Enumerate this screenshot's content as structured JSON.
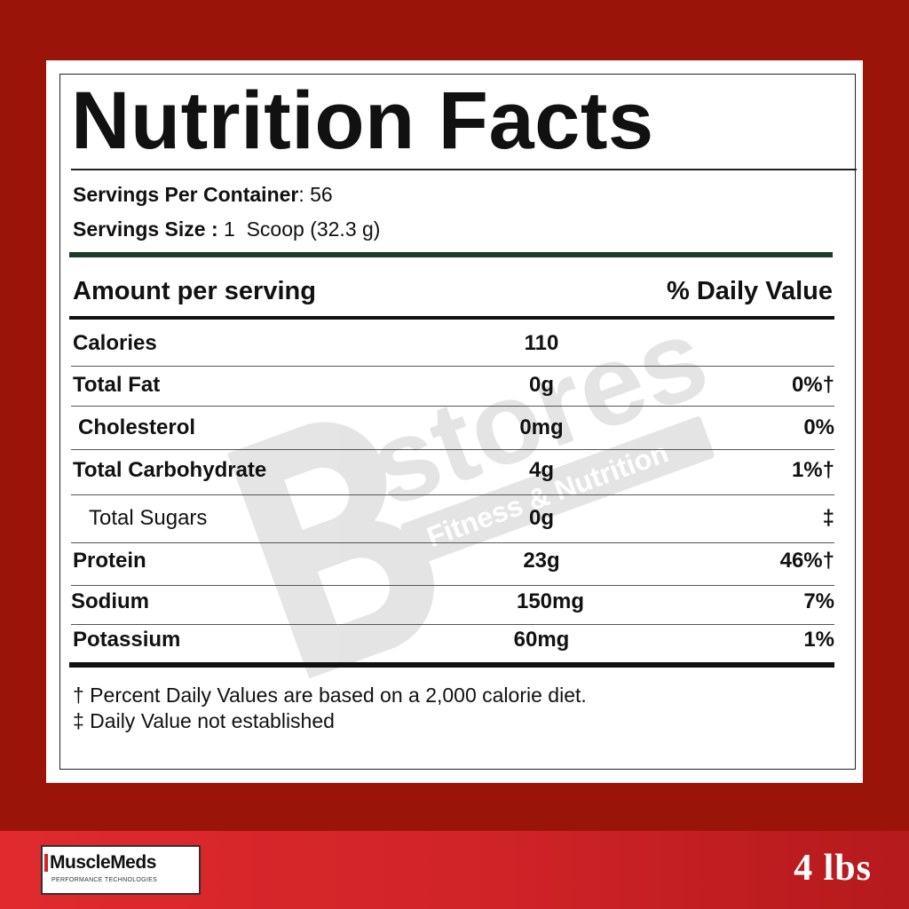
{
  "panel": {
    "title": "Nutrition Facts",
    "servings_per_container_label": "Servings Per Container",
    "servings_per_container_value": ": 56",
    "serving_size_label": "Servings Size :",
    "serving_size_value": "1  Scoop (32.3 g)",
    "amount_header": "Amount per serving",
    "dv_header": "% Daily Value",
    "rows": [
      {
        "name": "Calories",
        "amount": "110",
        "dv": ""
      },
      {
        "name": "Total Fat",
        "amount": "0g",
        "dv": "0%†"
      },
      {
        "name": "Cholesterol",
        "amount": "0mg",
        "dv": "0%"
      },
      {
        "name": "Total Carbohydrate",
        "amount": "4g",
        "dv": "1%†"
      },
      {
        "name": "Total Sugars",
        "amount": "0g",
        "dv": "‡"
      },
      {
        "name": "Protein",
        "amount": "23g",
        "dv": "46%†"
      },
      {
        "name": "Sodium",
        "amount": "150mg",
        "dv": "7%"
      },
      {
        "name": "Potassium",
        "amount": "60mg",
        "dv": "1%"
      }
    ],
    "footnote_1": "† Percent Daily Values are based on a 2,000 calorie diet.",
    "footnote_2": "‡ Daily Value not established"
  },
  "watermark": {
    "brand": "stores",
    "tagline": "Fitness & Nutrition"
  },
  "footer": {
    "logo_text": "MuscleMeds",
    "logo_subtext": "PERFORMANCE TECHNOLOGIES",
    "size_text": "4 lbs"
  },
  "colors": {
    "background": "#9a1409",
    "bottom_bar": "#e02a2e",
    "green_rule": "#1e3a2a"
  }
}
